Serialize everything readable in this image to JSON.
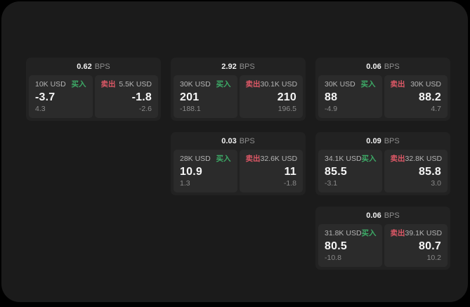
{
  "theme": {
    "outer_bg": "#000000",
    "window_bg": "#1b1b1b",
    "card_bg": "#222222",
    "panel_bg": "#2b2b2b",
    "buy_color": "#3dab67",
    "sell_color": "#dd5866",
    "primary_text": "#f5f5f5",
    "muted_text": "#8a8a8a",
    "label_text": "#b4b4b4"
  },
  "cards": [
    {
      "row": 1,
      "col": 1,
      "bps_value": "0.62",
      "bps_unit": "BPS",
      "buy": {
        "amount": "10K USD",
        "side_label": "买入",
        "price": "-3.7",
        "delta": "4.3"
      },
      "sell": {
        "amount": "5.5K USD",
        "side_label": "卖出",
        "price": "-1.8",
        "delta": "-2.6"
      }
    },
    {
      "row": 1,
      "col": 2,
      "bps_value": "2.92",
      "bps_unit": "BPS",
      "buy": {
        "amount": "30K USD",
        "side_label": "买入",
        "price": "201",
        "delta": "-188.1"
      },
      "sell": {
        "amount": "30.1K USD",
        "side_label": "卖出",
        "price": "210",
        "delta": "196.5"
      }
    },
    {
      "row": 1,
      "col": 3,
      "bps_value": "0.06",
      "bps_unit": "BPS",
      "buy": {
        "amount": "30K USD",
        "side_label": "买入",
        "price": "88",
        "delta": "-4.9"
      },
      "sell": {
        "amount": "30K USD",
        "side_label": "卖出",
        "price": "88.2",
        "delta": "4.7"
      }
    },
    {
      "row": 2,
      "col": 2,
      "bps_value": "0.03",
      "bps_unit": "BPS",
      "buy": {
        "amount": "28K USD",
        "side_label": "买入",
        "price": "10.9",
        "delta": "1.3"
      },
      "sell": {
        "amount": "32.6K USD",
        "side_label": "卖出",
        "price": "11",
        "delta": "-1.8"
      }
    },
    {
      "row": 2,
      "col": 3,
      "bps_value": "0.09",
      "bps_unit": "BPS",
      "buy": {
        "amount": "34.1K USD",
        "side_label": "买入",
        "price": "85.5",
        "delta": "-3.1"
      },
      "sell": {
        "amount": "32.8K USD",
        "side_label": "卖出",
        "price": "85.8",
        "delta": "3.0"
      }
    },
    {
      "row": 3,
      "col": 3,
      "bps_value": "0.06",
      "bps_unit": "BPS",
      "buy": {
        "amount": "31.8K USD",
        "side_label": "买入",
        "price": "80.5",
        "delta": "-10.8"
      },
      "sell": {
        "amount": "39.1K USD",
        "side_label": "卖出",
        "price": "80.7",
        "delta": "10.2"
      }
    }
  ]
}
